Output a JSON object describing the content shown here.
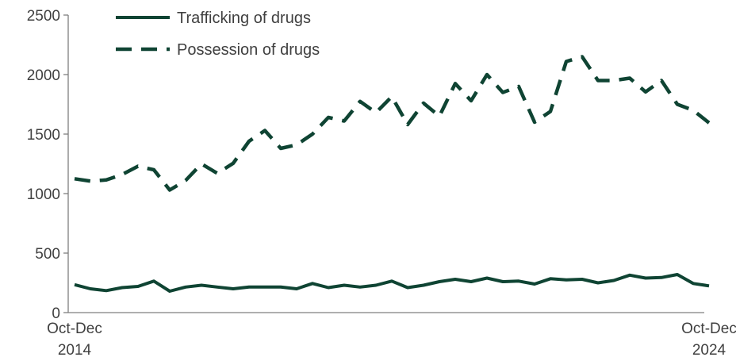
{
  "chart_data": {
    "type": "line",
    "title": "",
    "xlabel": "",
    "ylabel": "",
    "ylim": [
      0,
      2500
    ],
    "yticks": [
      0,
      500,
      1000,
      1500,
      2000,
      2500
    ],
    "grid": false,
    "legend_position": "top-left",
    "x_tick_labels": [
      {
        "index": 0,
        "line1": "Oct-Dec",
        "line2": "2014"
      },
      {
        "index": 40,
        "line1": "Oct-Dec",
        "line2": "2024"
      }
    ],
    "colors": {
      "series": "#0f4433",
      "axis": "#7f7f7f"
    },
    "series": [
      {
        "name": "Trafficking of drugs",
        "style": "solid",
        "values": [
          235,
          200,
          185,
          210,
          220,
          265,
          180,
          215,
          230,
          215,
          200,
          215,
          215,
          215,
          200,
          245,
          210,
          230,
          215,
          230,
          265,
          210,
          230,
          260,
          280,
          260,
          290,
          260,
          265,
          240,
          285,
          275,
          280,
          250,
          270,
          315,
          290,
          295,
          320,
          245,
          225
        ]
      },
      {
        "name": "Possession of drugs",
        "style": "dashed",
        "values": [
          1125,
          1105,
          1115,
          1160,
          1230,
          1200,
          1030,
          1110,
          1250,
          1170,
          1255,
          1440,
          1530,
          1380,
          1410,
          1500,
          1640,
          1610,
          1775,
          1680,
          1815,
          1580,
          1760,
          1650,
          1925,
          1780,
          2000,
          1850,
          1900,
          1600,
          1690,
          2110,
          2150,
          1950,
          1950,
          1970,
          1855,
          1950,
          1750,
          1700,
          1595
        ]
      }
    ]
  }
}
